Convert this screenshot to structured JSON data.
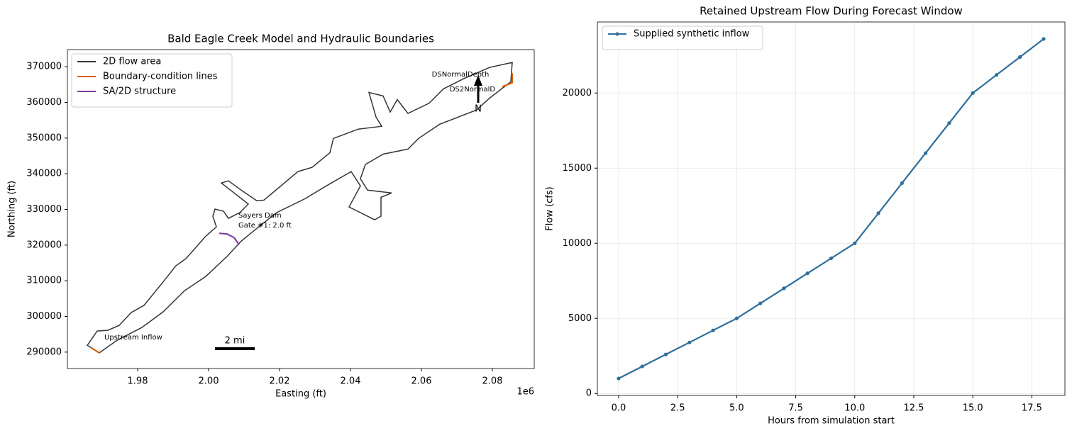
{
  "chart_data": [
    {
      "type": "map",
      "title": "Bald Eagle Creek Model and Hydraulic Boundaries",
      "xlabel": "Easting (ft)",
      "ylabel": "Northing (ft)",
      "x_offset_label": "1e6",
      "xlim": [
        1960200,
        2091800
      ],
      "ylim": [
        285400,
        374800
      ],
      "xticks": [
        {
          "value": 1980000,
          "label": "1.98"
        },
        {
          "value": 2000000,
          "label": "2.00"
        },
        {
          "value": 2020000,
          "label": "2.02"
        },
        {
          "value": 2040000,
          "label": "2.04"
        },
        {
          "value": 2060000,
          "label": "2.06"
        },
        {
          "value": 2080000,
          "label": "2.08"
        }
      ],
      "yticks": [
        290000,
        300000,
        310000,
        320000,
        330000,
        340000,
        350000,
        360000,
        370000
      ],
      "legend": "upper left",
      "series": [
        {
          "name": "2D flow area",
          "color": "#2f363d",
          "closed": true,
          "x": [
            1965800,
            1968600,
            1971600,
            1974800,
            1978200,
            1981800,
            1986800,
            1990800,
            1993600,
            1996200,
            1999200,
            2002200,
            2001200,
            2001800,
            2004200,
            2005600,
            2008800,
            2011200,
            2006200,
            2003600,
            2005600,
            2009200,
            2013600,
            2015600,
            2025200,
            2029200,
            2034200,
            2035200,
            2042200,
            2048800,
            2047200,
            2045200,
            2049200,
            2051200,
            2053200,
            2056200,
            2062200,
            2066200,
            2072200,
            2079200,
            2085600,
            2085200,
            2079200,
            2075600,
            2065200,
            2059200,
            2056200,
            2049200,
            2044200,
            2042800,
            2044800,
            2051600,
            2048600,
            2048600,
            2046800,
            2039600,
            2042800,
            2040200,
            2033200,
            2027200,
            2019200,
            2013600,
            2009200,
            2005200,
            1999200,
            1993200,
            1987200,
            1981200,
            1974200,
            1969200
          ],
          "y": [
            291900,
            295900,
            296100,
            297500,
            301100,
            303100,
            309200,
            314200,
            316200,
            319100,
            322500,
            325100,
            328100,
            330100,
            329500,
            327500,
            329100,
            331500,
            335400,
            337400,
            338000,
            335400,
            332400,
            332600,
            340600,
            341800,
            345900,
            349900,
            352500,
            353300,
            355900,
            362800,
            361800,
            357300,
            360800,
            356900,
            359800,
            363800,
            366800,
            369800,
            371200,
            365800,
            361200,
            357900,
            353900,
            349900,
            346900,
            345500,
            342600,
            338600,
            335400,
            334600,
            333400,
            328100,
            327100,
            330700,
            336600,
            340600,
            336600,
            333000,
            329100,
            324700,
            321100,
            316800,
            311200,
            307200,
            301300,
            296900,
            293300,
            289800
          ]
        },
        {
          "name": "Boundary-condition lines",
          "color": "#d95f02",
          "closed": false,
          "x": [
            1966800,
            1969200,
            null,
            2085600,
            2085600,
            2082800
          ],
          "y": [
            291300,
            289800,
            null,
            368200,
            365500,
            364400
          ]
        },
        {
          "name": "SA/2D structure",
          "color": "#7b3fa0",
          "closed": false,
          "x": [
            2003000,
            2005200,
            2007200,
            2008600
          ],
          "y": [
            323300,
            323100,
            322100,
            320100
          ]
        }
      ],
      "annotations": [
        "Upstream Inflow",
        "Sayers Dam",
        "Gate #1: 2.0 ft",
        "DSNormalDepth",
        "DS2NormalD"
      ],
      "north_label": "N",
      "scale_bar_label": "2 mi"
    },
    {
      "type": "line",
      "title": "Retained Upstream Flow During Forecast Window",
      "xlabel": "Hours from simulation start",
      "ylabel": "Flow (cfs)",
      "xlim": [
        -0.9,
        18.9
      ],
      "ylim": [
        -130,
        24730
      ],
      "xticks": [
        {
          "value": 0,
          "label": "0.0"
        },
        2.5,
        {
          "value": 5,
          "label": "5.0"
        },
        7.5,
        {
          "value": 10,
          "label": "10.0"
        },
        12.5,
        {
          "value": 15,
          "label": "15.0"
        },
        17.5
      ],
      "yticks": [
        0,
        5000,
        10000,
        15000,
        20000
      ],
      "grid": true,
      "legend": "upper left",
      "series": [
        {
          "name": "Supplied synthetic inflow",
          "color": "#2e6e9b",
          "x": [
            0,
            1,
            2,
            3,
            4,
            5,
            6,
            7,
            8,
            9,
            10,
            11,
            12,
            13,
            14,
            15,
            16,
            17,
            18
          ],
          "y": [
            1000,
            1800,
            2600,
            3400,
            4200,
            5000,
            6000,
            7000,
            8000,
            9000,
            10000,
            12000,
            14000,
            16000,
            18000,
            20000,
            21200,
            22400,
            23600
          ]
        }
      ]
    }
  ]
}
